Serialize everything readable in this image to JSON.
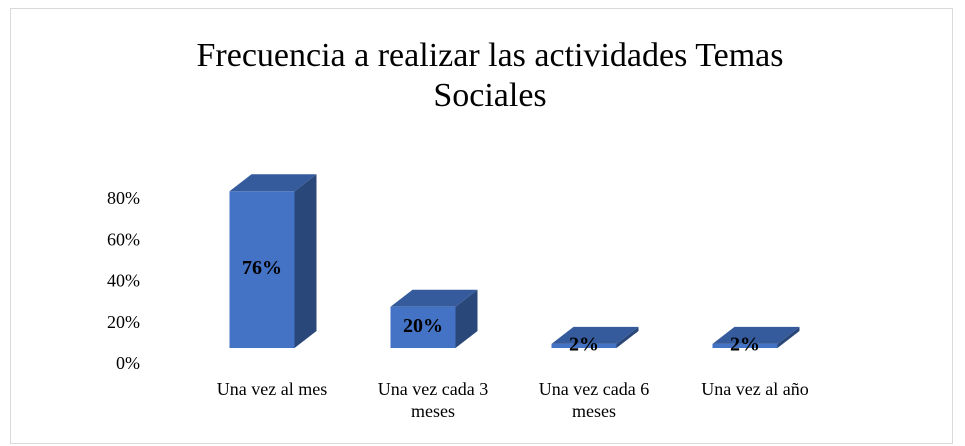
{
  "chart_data": {
    "type": "bar3d",
    "title": "Frecuencia a realizar las actividades Temas Sociales",
    "categories": [
      "Una vez al mes",
      "Una vez cada 3 meses",
      "Una vez cada 6 meses",
      "Una vez al año"
    ],
    "values": [
      76,
      20,
      2,
      2
    ],
    "value_labels": [
      "76%",
      "20%",
      "2%",
      "2%"
    ],
    "color": "#4472c4",
    "ylim": [
      0,
      80
    ],
    "yticks": [
      {
        "value": 0,
        "label": "0%"
      },
      {
        "value": 20,
        "label": "20%"
      },
      {
        "value": 40,
        "label": "40%"
      },
      {
        "value": 60,
        "label": "60%"
      },
      {
        "value": 80,
        "label": "80%"
      }
    ],
    "grid": false
  }
}
